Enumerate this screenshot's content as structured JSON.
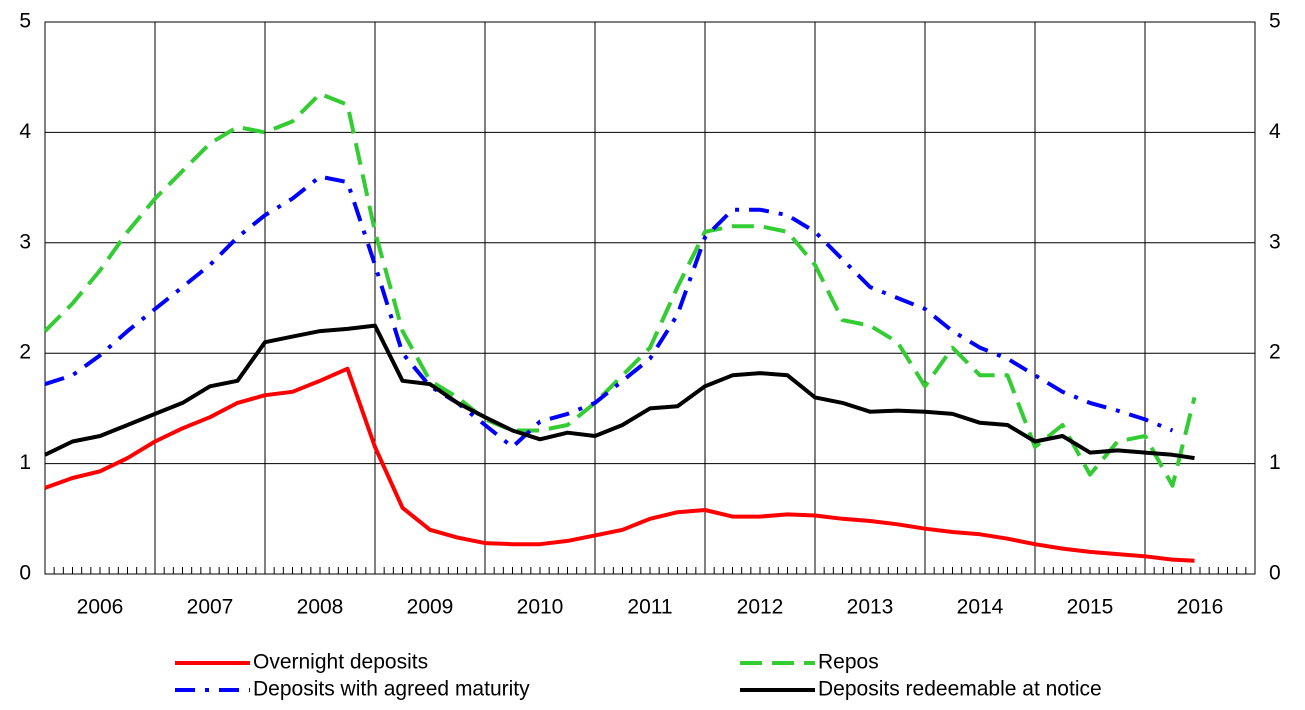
{
  "chart_data": {
    "type": "line",
    "x": [
      2006,
      2006.25,
      2006.5,
      2006.75,
      2007,
      2007.25,
      2007.5,
      2007.75,
      2008,
      2008.25,
      2008.5,
      2008.75,
      2009,
      2009.25,
      2009.5,
      2009.75,
      2010,
      2010.25,
      2010.5,
      2010.75,
      2011,
      2011.25,
      2011.5,
      2011.75,
      2012,
      2012.25,
      2012.5,
      2012.75,
      2013,
      2013.25,
      2013.5,
      2013.75,
      2014,
      2014.25,
      2014.5,
      2014.75,
      2015,
      2015.25,
      2015.5,
      2015.75,
      2016,
      2016.25,
      2016.45
    ],
    "series": [
      {
        "name": "Overnight deposits",
        "color": "#ff0000",
        "dash": "solid",
        "values": [
          0.78,
          0.87,
          0.93,
          1.05,
          1.2,
          1.32,
          1.42,
          1.55,
          1.62,
          1.65,
          1.75,
          1.86,
          1.15,
          0.6,
          0.4,
          0.33,
          0.28,
          0.27,
          0.27,
          0.3,
          0.35,
          0.4,
          0.5,
          0.56,
          0.58,
          0.52,
          0.52,
          0.54,
          0.53,
          0.5,
          0.48,
          0.45,
          0.41,
          0.38,
          0.36,
          0.32,
          0.27,
          0.23,
          0.2,
          0.18,
          0.16,
          0.13,
          0.12
        ]
      },
      {
        "name": "Repos",
        "color": "#33cc33",
        "dash": "dashed",
        "values": [
          2.2,
          2.45,
          2.75,
          3.1,
          3.4,
          3.65,
          3.9,
          4.05,
          4.0,
          4.1,
          4.35,
          4.25,
          3.1,
          2.2,
          1.75,
          1.6,
          1.4,
          1.3,
          1.3,
          1.35,
          1.55,
          1.8,
          2.05,
          2.6,
          3.1,
          3.15,
          3.15,
          3.1,
          2.8,
          2.3,
          2.25,
          2.1,
          1.7,
          2.05,
          1.8,
          1.8,
          1.15,
          1.35,
          0.9,
          1.2,
          1.25,
          0.8,
          1.6
        ]
      },
      {
        "name": "Deposits with agreed maturity",
        "color": "#0000ff",
        "dash": "dashdot",
        "values": [
          1.72,
          1.8,
          1.98,
          2.2,
          2.4,
          2.6,
          2.8,
          3.05,
          3.25,
          3.4,
          3.6,
          3.55,
          2.8,
          2.0,
          1.7,
          1.55,
          1.35,
          1.15,
          1.38,
          1.45,
          1.55,
          1.75,
          1.95,
          2.35,
          3.05,
          3.3,
          3.3,
          3.25,
          3.1,
          2.85,
          2.6,
          2.5,
          2.4,
          2.2,
          2.05,
          1.95,
          1.8,
          1.65,
          1.55,
          1.48,
          1.4,
          1.3,
          null
        ]
      },
      {
        "name": "Deposits redeemable at notice",
        "color": "#000000",
        "dash": "solid",
        "values": [
          1.08,
          1.2,
          1.25,
          1.35,
          1.45,
          1.55,
          1.7,
          1.75,
          2.1,
          2.15,
          2.2,
          2.22,
          2.25,
          1.75,
          1.72,
          1.55,
          1.42,
          1.3,
          1.22,
          1.28,
          1.25,
          1.35,
          1.5,
          1.52,
          1.7,
          1.8,
          1.82,
          1.8,
          1.6,
          1.55,
          1.47,
          1.48,
          1.47,
          1.45,
          1.37,
          1.35,
          1.2,
          1.25,
          1.1,
          1.12,
          1.1,
          1.08,
          1.05
        ]
      }
    ],
    "xlim": [
      2006,
      2017
    ],
    "xticks": [
      {
        "value": 2006.5,
        "label": "2006"
      },
      {
        "value": 2007.5,
        "label": "2007"
      },
      {
        "value": 2008.5,
        "label": "2008"
      },
      {
        "value": 2009.5,
        "label": "2009"
      },
      {
        "value": 2010.5,
        "label": "2010"
      },
      {
        "value": 2011.5,
        "label": "2011"
      },
      {
        "value": 2012.5,
        "label": "2012"
      },
      {
        "value": 2013.5,
        "label": "2013"
      },
      {
        "value": 2014.5,
        "label": "2014"
      },
      {
        "value": 2015.5,
        "label": "2015"
      },
      {
        "value": 2016.5,
        "label": "2016"
      }
    ],
    "xgrid": [
      2007,
      2008,
      2009,
      2010,
      2011,
      2012,
      2013,
      2014,
      2015,
      2016
    ],
    "ylim": [
      0,
      5
    ],
    "yticks": [
      0,
      1,
      2,
      3,
      4,
      5
    ],
    "grid": true,
    "legend": "bottom"
  }
}
